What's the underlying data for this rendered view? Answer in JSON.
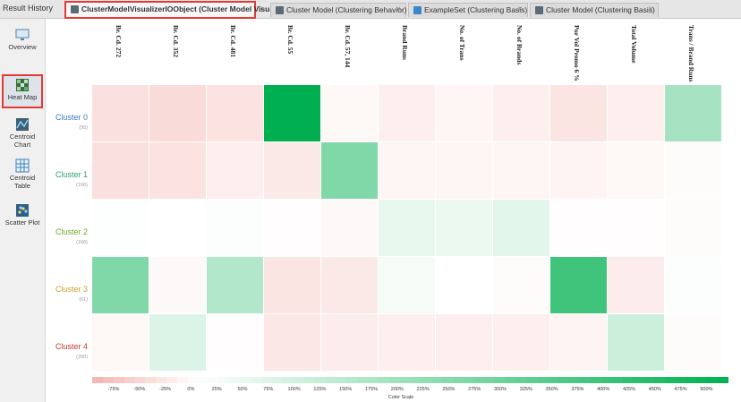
{
  "panel": {
    "title": "Result History"
  },
  "tabs": [
    {
      "label": "ClusterModelVisualizerIOObject (Cluster Model Visualizer)",
      "active": true
    },
    {
      "label": "Cluster Model (Clustering Behavior)",
      "active": false
    },
    {
      "label": "ExampleSet (Clustering Basis)",
      "active": false
    },
    {
      "label": "Cluster Model (Clustering Basis)",
      "active": false
    }
  ],
  "sidebar": {
    "items": [
      {
        "label": "Overview",
        "icon": "overview-icon",
        "active": false
      },
      {
        "label": "Heat Map",
        "icon": "heat-map-icon",
        "active": true
      },
      {
        "label": "Centroid Chart",
        "icon": "centroid-chart-icon",
        "active": false
      },
      {
        "label": "Centroid Table",
        "icon": "centroid-table-icon",
        "active": false
      },
      {
        "label": "Scatter Plot",
        "icon": "scatter-plot-icon",
        "active": false
      }
    ]
  },
  "heatmap": {
    "columns": [
      "Br. Cd. 272",
      "Br. Cd. 352",
      "Br. Cd. 481",
      "Br. Cd. 55",
      "Br. Cd. 57, 144",
      "Brand Runs",
      "No. of Trans",
      "No. of Brands",
      "Pur Vol Promo 6 %",
      "Total Volume",
      "Trans / Brand Runs"
    ],
    "rows": [
      {
        "name": "Cluster 0",
        "count": "(95)",
        "color": "#3d7ec0"
      },
      {
        "name": "Cluster 1",
        "count": "(106)",
        "color": "#2aa26a"
      },
      {
        "name": "Cluster 2",
        "count": "(166)",
        "color": "#6fa82e"
      },
      {
        "name": "Cluster 3",
        "count": "(61)",
        "color": "#c9a02a"
      },
      {
        "name": "Cluster 4",
        "count": "(200)",
        "color": "#c0392b"
      }
    ],
    "values": [
      [
        -42,
        -48,
        -38,
        500,
        -10,
        -22,
        -12,
        -22,
        -35,
        -22,
        175
      ],
      [
        -40,
        -38,
        -22,
        -30,
        250,
        -12,
        -12,
        -12,
        -15,
        -10,
        -5
      ],
      [
        3,
        2,
        8,
        -3,
        -8,
        45,
        40,
        55,
        -3,
        -3,
        -5
      ],
      [
        250,
        -8,
        150,
        -35,
        -30,
        20,
        0,
        -5,
        375,
        -25,
        5
      ],
      [
        -10,
        70,
        -3,
        -32,
        -25,
        -22,
        -22,
        -22,
        -15,
        100,
        -5
      ]
    ]
  },
  "scale": {
    "min": -100,
    "max": 500,
    "neg_color": "#f6c7c5",
    "pos_color": "#00b050",
    "ticks": [
      "-75%",
      "-50%",
      "-25%",
      "0%",
      "25%",
      "50%",
      "75%",
      "100%",
      "125%",
      "150%",
      "175%",
      "200%",
      "225%",
      "250%",
      "275%",
      "300%",
      "325%",
      "350%",
      "375%",
      "400%",
      "425%",
      "450%",
      "475%",
      "500%"
    ],
    "caption": "Color Scale"
  }
}
